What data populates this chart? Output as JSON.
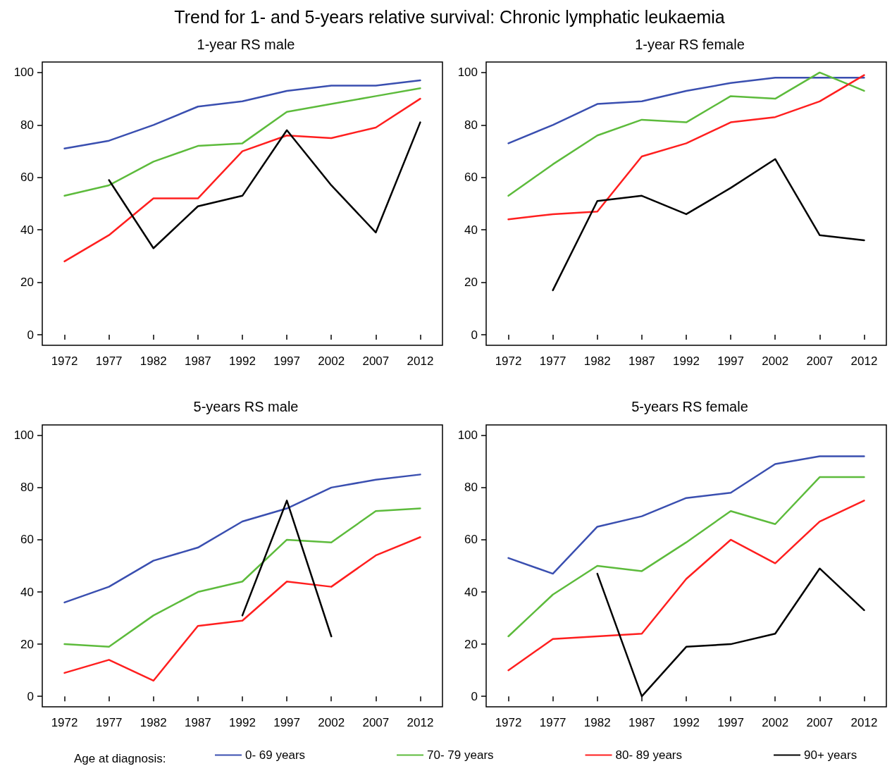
{
  "chart_data": [
    {
      "type": "line",
      "title": "Trend for 1- and 5-years relative survival: Chronic lymphatic leukaemia",
      "subtitle": "1-year RS male",
      "categories": [
        "1972",
        "1977",
        "1982",
        "1987",
        "1992",
        "1997",
        "2002",
        "2007",
        "2012"
      ],
      "ylim": [
        -4,
        104
      ],
      "yticks": [
        0,
        20,
        40,
        60,
        80,
        100
      ],
      "series": [
        {
          "color": "#3a4fb0",
          "values": [
            71,
            74,
            80,
            87,
            89,
            93,
            95,
            95,
            97
          ]
        },
        {
          "color": "#5dbb3c",
          "values": [
            53,
            57,
            66,
            72,
            73,
            85,
            88,
            91,
            94
          ]
        },
        {
          "color": "#ff1f1f",
          "values": [
            28,
            38,
            52,
            52,
            70,
            76,
            75,
            79,
            90
          ]
        },
        {
          "color": "#000000",
          "values": [
            null,
            59,
            33,
            49,
            53,
            78,
            57,
            39,
            81
          ]
        }
      ]
    },
    {
      "type": "line",
      "title": "1-year RS female",
      "categories": [
        "1972",
        "1977",
        "1982",
        "1987",
        "1992",
        "1997",
        "2002",
        "2007",
        "2012"
      ],
      "ylim": [
        -4,
        104
      ],
      "yticks": [
        0,
        20,
        40,
        60,
        80,
        100
      ],
      "series": [
        {
          "color": "#3a4fb0",
          "values": [
            73,
            80,
            88,
            89,
            93,
            96,
            98,
            98,
            98
          ]
        },
        {
          "color": "#5dbb3c",
          "values": [
            53,
            65,
            76,
            82,
            81,
            91,
            90,
            100,
            93
          ]
        },
        {
          "color": "#ff1f1f",
          "values": [
            44,
            46,
            47,
            68,
            73,
            81,
            83,
            89,
            99
          ]
        },
        {
          "color": "#000000",
          "values": [
            null,
            17,
            51,
            53,
            46,
            56,
            67,
            38,
            36
          ]
        }
      ]
    },
    {
      "type": "line",
      "title": "5-years RS male",
      "categories": [
        "1972",
        "1977",
        "1982",
        "1987",
        "1992",
        "1997",
        "2002",
        "2007",
        "2012"
      ],
      "ylim": [
        -4,
        104
      ],
      "yticks": [
        0,
        20,
        40,
        60,
        80,
        100
      ],
      "series": [
        {
          "color": "#3a4fb0",
          "values": [
            36,
            42,
            52,
            57,
            67,
            72,
            80,
            83,
            85
          ]
        },
        {
          "color": "#5dbb3c",
          "values": [
            20,
            19,
            31,
            40,
            44,
            60,
            59,
            71,
            72
          ]
        },
        {
          "color": "#ff1f1f",
          "values": [
            9,
            14,
            6,
            27,
            29,
            44,
            42,
            54,
            61
          ]
        },
        {
          "color": "#000000",
          "values": [
            null,
            null,
            null,
            null,
            31,
            75,
            23,
            null,
            null
          ]
        }
      ]
    },
    {
      "type": "line",
      "title": "5-years RS female",
      "legend": "bottom",
      "legend_title": "Age at diagnosis:",
      "categories": [
        "1972",
        "1977",
        "1982",
        "1987",
        "1992",
        "1997",
        "2002",
        "2007",
        "2012"
      ],
      "ylim": [
        -4,
        104
      ],
      "yticks": [
        0,
        20,
        40,
        60,
        80,
        100
      ],
      "series": [
        {
          "name": "0- 69 years",
          "color": "#3a4fb0",
          "values": [
            53,
            47,
            65,
            69,
            76,
            78,
            89,
            92,
            92
          ]
        },
        {
          "name": "70- 79 years",
          "color": "#5dbb3c",
          "values": [
            23,
            39,
            50,
            48,
            59,
            71,
            66,
            84,
            84
          ]
        },
        {
          "name": "80- 89 years",
          "color": "#ff1f1f",
          "values": [
            10,
            22,
            23,
            24,
            45,
            60,
            51,
            67,
            75
          ]
        },
        {
          "name": "90+ years",
          "color": "#000000",
          "values": [
            null,
            null,
            47,
            0,
            19,
            20,
            24,
            49,
            33
          ]
        }
      ]
    }
  ]
}
